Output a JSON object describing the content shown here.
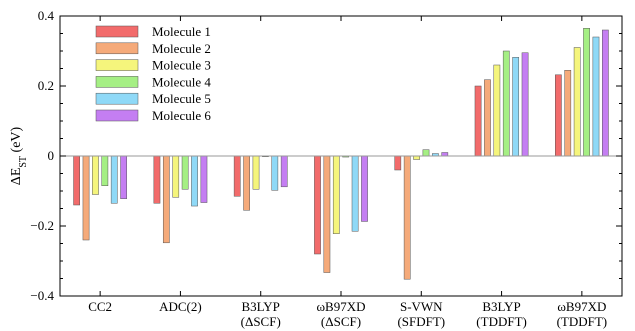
{
  "chart_data": {
    "type": "bar",
    "ylabel": "ΔE_ST (eV)",
    "ylabel_main": "ΔE",
    "ylabel_sub": "ST",
    "ylabel_unit": " (eV)",
    "ylim": [
      -0.4,
      0.4
    ],
    "yticks": [
      -0.4,
      -0.2,
      0,
      0.2,
      0.4
    ],
    "yticks_labels": [
      "−0.4",
      "−0.2",
      "0",
      "0.2",
      "0.4"
    ],
    "grid": false,
    "zero_line": true,
    "legend_position": "top-left",
    "categories": [
      {
        "line1": "CC2",
        "line2": ""
      },
      {
        "line1": "ADC(2)",
        "line2": ""
      },
      {
        "line1": "B3LYP",
        "line2": "(ΔSCF)"
      },
      {
        "line1": "ωB97XD",
        "line2": "(ΔSCF)"
      },
      {
        "line1": "S-VWN",
        "line2": "(SFDFT)"
      },
      {
        "line1": "B3LYP",
        "line2": "(TDDFT)"
      },
      {
        "line1": "ωB97XD",
        "line2": "(TDDFT)"
      }
    ],
    "series": [
      {
        "name": "Molecule 1",
        "color": "#f26b6b",
        "values": [
          -0.14,
          -0.135,
          -0.115,
          -0.28,
          -0.04,
          0.2,
          0.232
        ]
      },
      {
        "name": "Molecule 2",
        "color": "#f5aa7a",
        "values": [
          -0.24,
          -0.248,
          -0.155,
          -0.333,
          -0.352,
          0.218,
          0.245
        ]
      },
      {
        "name": "Molecule 3",
        "color": "#f5f57c",
        "values": [
          -0.11,
          -0.118,
          -0.095,
          -0.222,
          -0.01,
          0.26,
          0.31
        ]
      },
      {
        "name": "Molecule 4",
        "color": "#a5ef84",
        "values": [
          -0.085,
          -0.095,
          -0.002,
          -0.003,
          0.018,
          0.3,
          0.365
        ]
      },
      {
        "name": "Molecule 5",
        "color": "#8fd9f7",
        "values": [
          -0.135,
          -0.143,
          -0.098,
          -0.215,
          0.007,
          0.282,
          0.34
        ]
      },
      {
        "name": "Molecule 6",
        "color": "#c47ef2",
        "values": [
          -0.122,
          -0.133,
          -0.088,
          -0.187,
          0.01,
          0.295,
          0.36
        ]
      }
    ]
  }
}
